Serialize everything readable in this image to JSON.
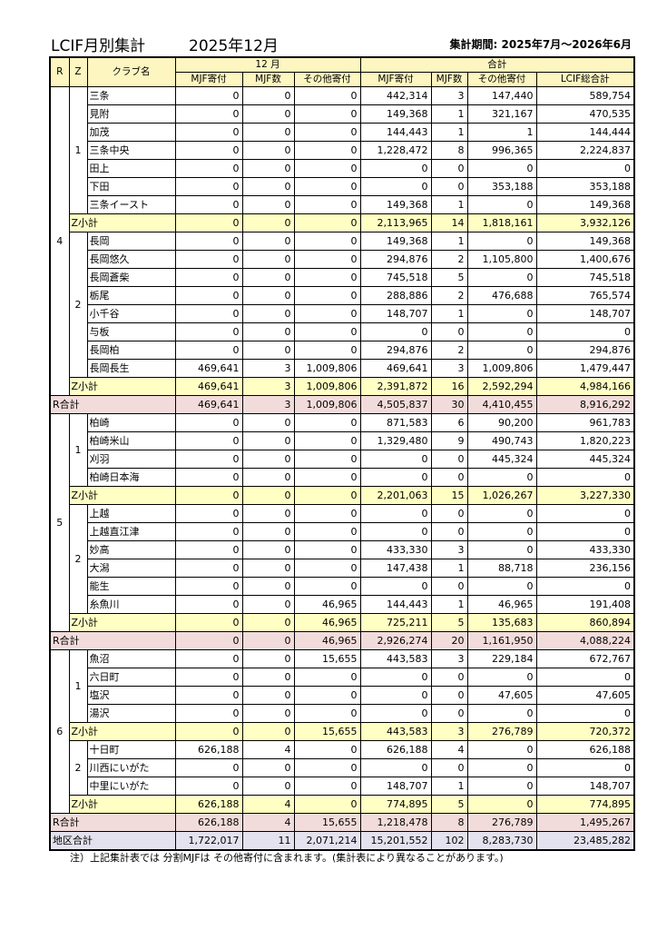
{
  "header": {
    "title": "LCIF月別集計",
    "month": "2025年12月",
    "period": "集計期間: 2025年7月～2026年6月"
  },
  "columns": {
    "r": "R",
    "z": "Z",
    "club": "クラブ名",
    "month_group": "12 月",
    "total_group": "合計",
    "sub": [
      "MJF寄付",
      "MJF数",
      "その他寄付",
      "MJF寄付",
      "MJF数",
      "その他寄付",
      "LCIF総合計"
    ]
  },
  "labels": {
    "zone_subtotal": "Z小計",
    "region_total": "R合計",
    "district_total": "地区合計"
  },
  "regions": [
    {
      "r": "4",
      "zones": [
        {
          "z": "1",
          "clubs": [
            {
              "name": "三条",
              "values": [
                "0",
                "0",
                "0",
                "442,314",
                "3",
                "147,440",
                "589,754"
              ]
            },
            {
              "name": "見附",
              "values": [
                "0",
                "0",
                "0",
                "149,368",
                "1",
                "321,167",
                "470,535"
              ]
            },
            {
              "name": "加茂",
              "values": [
                "0",
                "0",
                "0",
                "144,443",
                "1",
                "1",
                "144,444"
              ]
            },
            {
              "name": "三条中央",
              "values": [
                "0",
                "0",
                "0",
                "1,228,472",
                "8",
                "996,365",
                "2,224,837"
              ]
            },
            {
              "name": "田上",
              "values": [
                "0",
                "0",
                "0",
                "0",
                "0",
                "0",
                "0"
              ]
            },
            {
              "name": "下田",
              "values": [
                "0",
                "0",
                "0",
                "0",
                "0",
                "353,188",
                "353,188"
              ]
            },
            {
              "name": "三条イースト",
              "values": [
                "0",
                "0",
                "0",
                "149,368",
                "1",
                "0",
                "149,368"
              ]
            }
          ],
          "subtotal": [
            "0",
            "0",
            "0",
            "2,113,965",
            "14",
            "1,818,161",
            "3,932,126"
          ]
        },
        {
          "z": "2",
          "clubs": [
            {
              "name": "長岡",
              "values": [
                "0",
                "0",
                "0",
                "149,368",
                "1",
                "0",
                "149,368"
              ]
            },
            {
              "name": "長岡悠久",
              "values": [
                "0",
                "0",
                "0",
                "294,876",
                "2",
                "1,105,800",
                "1,400,676"
              ]
            },
            {
              "name": "長岡蒼柴",
              "values": [
                "0",
                "0",
                "0",
                "745,518",
                "5",
                "0",
                "745,518"
              ]
            },
            {
              "name": "栃尾",
              "values": [
                "0",
                "0",
                "0",
                "288,886",
                "2",
                "476,688",
                "765,574"
              ]
            },
            {
              "name": "小千谷",
              "values": [
                "0",
                "0",
                "0",
                "148,707",
                "1",
                "0",
                "148,707"
              ]
            },
            {
              "name": "与板",
              "values": [
                "0",
                "0",
                "0",
                "0",
                "0",
                "0",
                "0"
              ]
            },
            {
              "name": "長岡柏",
              "values": [
                "0",
                "0",
                "0",
                "294,876",
                "2",
                "0",
                "294,876"
              ]
            },
            {
              "name": "長岡長生",
              "values": [
                "469,641",
                "3",
                "1,009,806",
                "469,641",
                "3",
                "1,009,806",
                "1,479,447"
              ]
            }
          ],
          "subtotal": [
            "469,641",
            "3",
            "1,009,806",
            "2,391,872",
            "16",
            "2,592,294",
            "4,984,166"
          ]
        }
      ],
      "total": [
        "469,641",
        "3",
        "1,009,806",
        "4,505,837",
        "30",
        "4,410,455",
        "8,916,292"
      ]
    },
    {
      "r": "5",
      "zones": [
        {
          "z": "1",
          "clubs": [
            {
              "name": "柏崎",
              "values": [
                "0",
                "0",
                "0",
                "871,583",
                "6",
                "90,200",
                "961,783"
              ]
            },
            {
              "name": "柏崎米山",
              "values": [
                "0",
                "0",
                "0",
                "1,329,480",
                "9",
                "490,743",
                "1,820,223"
              ]
            },
            {
              "name": "刈羽",
              "values": [
                "0",
                "0",
                "0",
                "0",
                "0",
                "445,324",
                "445,324"
              ]
            },
            {
              "name": "柏崎日本海",
              "values": [
                "0",
                "0",
                "0",
                "0",
                "0",
                "0",
                "0"
              ]
            }
          ],
          "subtotal": [
            "0",
            "0",
            "0",
            "2,201,063",
            "15",
            "1,026,267",
            "3,227,330"
          ]
        },
        {
          "z": "2",
          "clubs": [
            {
              "name": "上越",
              "values": [
                "0",
                "0",
                "0",
                "0",
                "0",
                "0",
                "0"
              ]
            },
            {
              "name": "上越直江津",
              "values": [
                "0",
                "0",
                "0",
                "0",
                "0",
                "0",
                "0"
              ]
            },
            {
              "name": "妙高",
              "values": [
                "0",
                "0",
                "0",
                "433,330",
                "3",
                "0",
                "433,330"
              ]
            },
            {
              "name": "大潟",
              "values": [
                "0",
                "0",
                "0",
                "147,438",
                "1",
                "88,718",
                "236,156"
              ]
            },
            {
              "name": "能生",
              "values": [
                "0",
                "0",
                "0",
                "0",
                "0",
                "0",
                "0"
              ]
            },
            {
              "name": "糸魚川",
              "values": [
                "0",
                "0",
                "46,965",
                "144,443",
                "1",
                "46,965",
                "191,408"
              ]
            }
          ],
          "subtotal": [
            "0",
            "0",
            "46,965",
            "725,211",
            "5",
            "135,683",
            "860,894"
          ]
        }
      ],
      "total": [
        "0",
        "0",
        "46,965",
        "2,926,274",
        "20",
        "1,161,950",
        "4,088,224"
      ]
    },
    {
      "r": "6",
      "zones": [
        {
          "z": "1",
          "clubs": [
            {
              "name": "魚沼",
              "values": [
                "0",
                "0",
                "15,655",
                "443,583",
                "3",
                "229,184",
                "672,767"
              ]
            },
            {
              "name": "六日町",
              "values": [
                "0",
                "0",
                "0",
                "0",
                "0",
                "0",
                "0"
              ]
            },
            {
              "name": "塩沢",
              "values": [
                "0",
                "0",
                "0",
                "0",
                "0",
                "47,605",
                "47,605"
              ]
            },
            {
              "name": "湯沢",
              "values": [
                "0",
                "0",
                "0",
                "0",
                "0",
                "0",
                "0"
              ]
            }
          ],
          "subtotal": [
            "0",
            "0",
            "15,655",
            "443,583",
            "3",
            "276,789",
            "720,372"
          ]
        },
        {
          "z": "2",
          "clubs": [
            {
              "name": "十日町",
              "values": [
                "626,188",
                "4",
                "0",
                "626,188",
                "4",
                "0",
                "626,188"
              ]
            },
            {
              "name": "川西にいがた",
              "values": [
                "0",
                "0",
                "0",
                "0",
                "0",
                "0",
                "0"
              ]
            },
            {
              "name": "中里にいがた",
              "values": [
                "0",
                "0",
                "0",
                "148,707",
                "1",
                "0",
                "148,707"
              ]
            }
          ],
          "subtotal": [
            "626,188",
            "4",
            "0",
            "774,895",
            "5",
            "0",
            "774,895"
          ]
        }
      ],
      "total": [
        "626,188",
        "4",
        "15,655",
        "1,218,478",
        "8",
        "276,789",
        "1,495,267"
      ]
    }
  ],
  "district_total": [
    "1,722,017",
    "11",
    "2,071,214",
    "15,201,552",
    "102",
    "8,283,730",
    "23,485,282"
  ],
  "note": "注）上記集計表では 分割MJFは その他寄付に含まれます。(集計表により異なることがあります。)",
  "colors": {
    "header_bg": "#fdf6c0",
    "zone_subtotal_bg": "#ffffc4",
    "region_total_bg": "#f2dcdb",
    "district_total_bg": "#e4e2ee"
  }
}
